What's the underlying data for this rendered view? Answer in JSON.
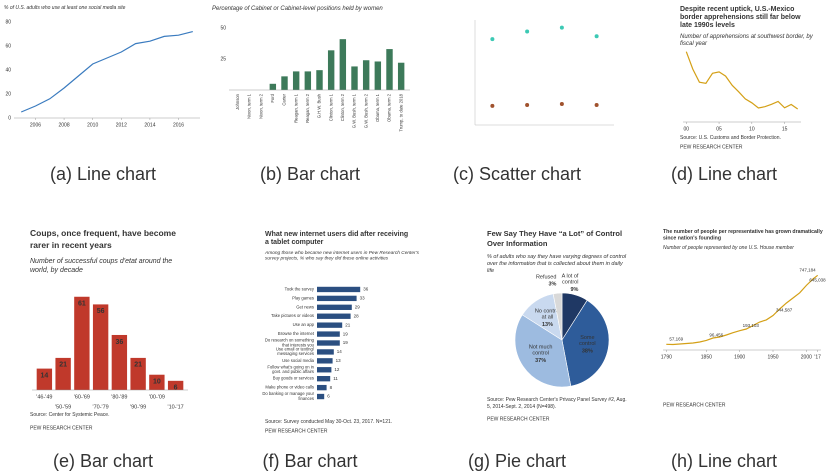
{
  "chart_data": [
    {
      "type": "line",
      "caption": "(a) Line chart",
      "title": "% of U.S. adults who use at least one social media site",
      "x": [
        2005,
        2006,
        2007,
        2008,
        2009,
        2010,
        2011,
        2012,
        2013,
        2014,
        2015,
        2016,
        2017
      ],
      "values": [
        5,
        10,
        16,
        25,
        35,
        45,
        50,
        55,
        62,
        64,
        68,
        69,
        72
      ],
      "color": "#3a7bbf",
      "xlim": [
        2004.5,
        2017.5
      ],
      "ylim": [
        0,
        80
      ],
      "xticks": [
        2006,
        2008,
        2010,
        2012,
        2014,
        2016
      ],
      "yticks": [
        0,
        20,
        40,
        60,
        80
      ]
    },
    {
      "type": "bar",
      "caption": "(b) Bar chart",
      "title": "Percentage of Cabinet or Cabinet-level positions held by women",
      "categories": [
        "Johnson",
        "Nixon, term 1",
        "Nixon, term 2",
        "Ford",
        "Carter",
        "Reagan, term 1",
        "Reagan, term 2",
        "G.H.W. Bush",
        "Clinton, term 1",
        "Clinton, term 2",
        "G.W. Bush, term 1",
        "G.W. Bush, term 2",
        "Obama, term 1",
        "Obama, term 2",
        "Trump, to date 2018"
      ],
      "values": [
        0,
        0,
        0,
        5,
        11,
        15,
        15,
        16,
        32,
        41,
        19,
        24,
        23,
        33,
        22
      ],
      "color": "#3d7a5a",
      "ylim": [
        0,
        50
      ],
      "yticks": [
        25,
        50
      ]
    },
    {
      "type": "scatter",
      "caption": "(c) Scatter chart",
      "series": [
        {
          "color": "#3cc9b4",
          "x": [
            1,
            2,
            3,
            4
          ],
          "values": [
            0.9,
            0.98,
            1.02,
            0.93
          ]
        },
        {
          "color": "#a0522d",
          "x": [
            1,
            2,
            3,
            4
          ],
          "values": [
            0.2,
            0.21,
            0.22,
            0.21
          ]
        }
      ],
      "xlim": [
        0.5,
        4.5
      ],
      "ylim": [
        0,
        1.1
      ]
    },
    {
      "type": "line",
      "caption": "(d) Line chart",
      "title": "Despite recent uptick, U.S.-Mexico border apprehensions still far below late 1990s levels",
      "subtitle": "Number of apprehensions at southwest border, by fiscal year",
      "source": "Source: U.S. Customs and Border Protection.",
      "footer": "PEW RESEARCH CENTER",
      "x": [
        2000,
        2001,
        2002,
        2003,
        2004,
        2005,
        2006,
        2007,
        2008,
        2009,
        2010,
        2011,
        2012,
        2013,
        2014,
        2015,
        2016,
        2017
      ],
      "values": [
        1643679,
        1235718,
        929809,
        905065,
        1139282,
        1171396,
        1071972,
        858638,
        705005,
        540865,
        447731,
        327577,
        356873,
        414397,
        479371,
        331333,
        408870,
        303916
      ],
      "color": "#d4a017",
      "xlim": [
        1999.5,
        2017.5
      ],
      "ylim": [
        0,
        1800000
      ],
      "xticks": [
        {
          "value": 2000,
          "label": "00"
        },
        {
          "value": 2005,
          "label": "05"
        },
        {
          "value": 2010,
          "label": "10"
        },
        {
          "value": 2015,
          "label": "15"
        }
      ]
    },
    {
      "type": "bar",
      "caption": "(e) Bar chart",
      "title": "Coups, once frequent, have become rarer in recent years",
      "subtitle": "Number of successful coups d'etat around the world, by decade",
      "source": "Source: Center for Systemic Peace.",
      "footer": "PEW RESEARCH CENTER",
      "categories": [
        "'46-'49",
        "'50-'59",
        "'60-'69",
        "'70-'79",
        "'80-'89",
        "'90-'99",
        "'00-'09",
        "'10-'17"
      ],
      "values": [
        14,
        21,
        61,
        56,
        36,
        21,
        10,
        6
      ],
      "color": "#c0392b",
      "ylim": [
        0,
        70
      ]
    },
    {
      "type": "hbar",
      "caption": "(f) Bar chart",
      "title": "What new internet users did after receiving a tablet computer",
      "subtitle": "Among those who became new internet users in Pew Research Center's survey projects, % who say they did these online activities",
      "source": "Source: Survey conducted May 30-Oct. 23, 2017. N=121.",
      "footer": "PEW RESEARCH CENTER",
      "categories": [
        "Took the survey",
        "Play games",
        "Get news",
        "Take pictures or videos",
        "Use an app",
        "Browse the internet",
        "Do research on something that interests you",
        "Use email or texting/ messaging services",
        "Use social media",
        "Follow what's going on in govt. and public affairs",
        "Buy goods or services",
        "Make phone or video calls",
        "Do banking or manage your finances"
      ],
      "values": [
        36,
        33,
        29,
        28,
        21,
        19,
        19,
        14,
        13,
        12,
        11,
        8,
        6
      ],
      "color": "#2b4f81",
      "xlim": [
        0,
        40
      ]
    },
    {
      "type": "pie",
      "caption": "(g) Pie chart",
      "title": "Few Say They Have “a Lot” of Control Over Information",
      "subtitle": "% of adults who say they have varying degrees of control over the information that is collected about them in daily life",
      "source": "Source: Pew Research Center's Privacy Panel Survey #2, Aug. 5, 2014-Sept. 2, 2014 (N=498).",
      "footer": "PEW RESEARCH CENTER",
      "categories": [
        "A lot of control",
        "Some control",
        "Not much control",
        "No control at all",
        "Refused"
      ],
      "values": [
        9,
        38,
        37,
        13,
        3
      ],
      "value_labels": [
        "9%",
        "38%",
        "37%",
        "13%",
        "3%"
      ],
      "colors": [
        "#1f3864",
        "#2e5c9a",
        "#9dbbe0",
        "#c9d9ef",
        "#d9d9d9"
      ]
    },
    {
      "type": "line",
      "caption": "(h) Line chart",
      "title": "The number of people per representative has grown dramatically since nation's founding",
      "subtitle": "Number of people represented by one U.S. House member",
      "footer": "PEW RESEARCH CENTER",
      "x": [
        1790,
        1800,
        1810,
        1820,
        1830,
        1840,
        1850,
        1860,
        1870,
        1880,
        1890,
        1900,
        1910,
        1920,
        1930,
        1940,
        1950,
        1960,
        1970,
        1980,
        1990,
        2000,
        2010,
        2017
      ],
      "values": [
        57169,
        55000,
        60000,
        65000,
        70000,
        80000,
        96456,
        120000,
        130000,
        150000,
        173000,
        193103,
        210000,
        245000,
        280000,
        301000,
        344587,
        410000,
        469000,
        520000,
        572000,
        645038,
        710000,
        747184
      ],
      "value_labels": [
        "57,169",
        null,
        null,
        null,
        null,
        null,
        "96,456",
        null,
        null,
        null,
        null,
        "193,103",
        null,
        null,
        null,
        null,
        "344,587",
        null,
        null,
        null,
        null,
        "645,038",
        null,
        "747,184"
      ],
      "color": "#d4a017",
      "xlim": [
        1785,
        2022
      ],
      "ylim": [
        0,
        800000
      ],
      "xticks": [
        1790,
        1850,
        1900,
        1950,
        2000,
        {
          "value": 2017,
          "label": "'17"
        }
      ]
    }
  ]
}
